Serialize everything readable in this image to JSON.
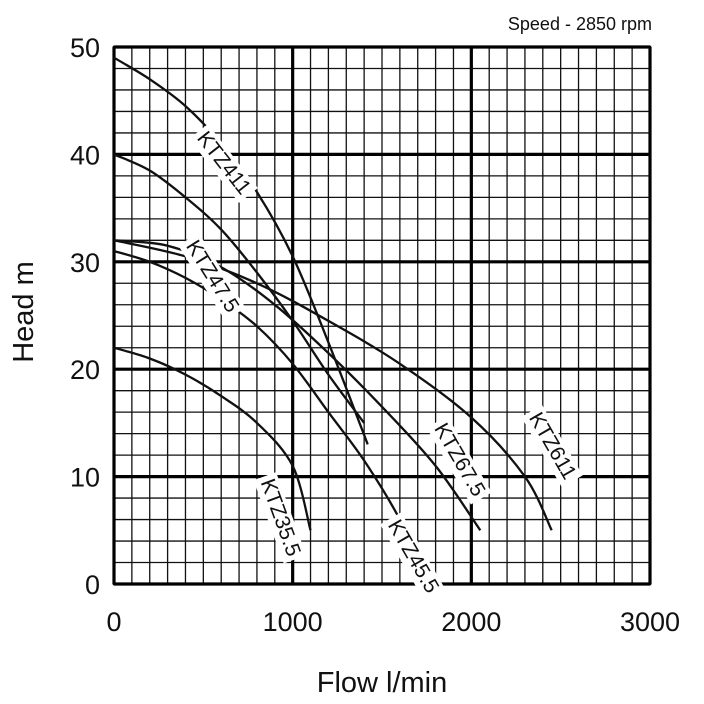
{
  "chart_data": {
    "type": "line",
    "title": "",
    "note": "Speed - 2850 rpm",
    "xlabel": "Flow l/min",
    "ylabel": "Head m",
    "xlim": [
      0,
      3000
    ],
    "ylim": [
      0,
      50
    ],
    "x_ticks": [
      0,
      1000,
      2000,
      3000
    ],
    "y_ticks": [
      0,
      10,
      20,
      30,
      40,
      50
    ],
    "x_minor_step": 100,
    "y_minor_step": 2,
    "grid": true,
    "series": [
      {
        "name": "KTZ411",
        "x": [
          0,
          200,
          400,
          600,
          800,
          1000,
          1200,
          1420
        ],
        "y": [
          49,
          47,
          44.5,
          41,
          36.5,
          30.5,
          22.5,
          13
        ]
      },
      {
        "name": "KTZ47.5",
        "x": [
          0,
          200,
          400,
          600,
          800,
          1000,
          1200,
          1400
        ],
        "y": [
          40,
          38.5,
          36,
          33,
          29,
          24.5,
          19.5,
          15
        ]
      },
      {
        "name": "KTZ35.5",
        "x": [
          0,
          200,
          400,
          600,
          800,
          1000,
          1100
        ],
        "y": [
          22,
          21,
          19.5,
          17.5,
          15,
          11,
          5
        ]
      },
      {
        "name": "KTZ45.5",
        "x": [
          0,
          200,
          400,
          600,
          800,
          1000,
          1200,
          1400,
          1600,
          1700
        ],
        "y": [
          31,
          30,
          28.5,
          26.5,
          24,
          20.5,
          16,
          11.5,
          6,
          2
        ]
      },
      {
        "name": "KTZ67.5",
        "x": [
          0,
          300,
          600,
          900,
          1200,
          1500,
          1800,
          2050
        ],
        "y": [
          32,
          31.5,
          29.5,
          26,
          21.5,
          16.5,
          11,
          5
        ]
      },
      {
        "name": "KTZ611",
        "x": [
          0,
          400,
          800,
          1200,
          1600,
          2000,
          2300,
          2450
        ],
        "y": [
          32,
          30.5,
          28,
          24.5,
          20.5,
          15.5,
          10,
          5
        ]
      }
    ],
    "annotations": [
      {
        "series": "KTZ411",
        "text": "KTZ411",
        "x": 460,
        "y": 41.5,
        "angle": 52
      },
      {
        "series": "KTZ47.5",
        "text": "KTZ47.5",
        "x": 400,
        "y": 31.5,
        "angle": 58
      },
      {
        "series": "KTZ35.5",
        "text": "KTZ35.5",
        "x": 820,
        "y": 9.5,
        "angle": 70
      },
      {
        "series": "KTZ45.5",
        "text": "KTZ45.5",
        "x": 1530,
        "y": 5.5,
        "angle": 60
      },
      {
        "series": "KTZ67.5",
        "text": "KTZ67.5",
        "x": 1790,
        "y": 14.5,
        "angle": 60
      },
      {
        "series": "KTZ611",
        "text": "KTZ611",
        "x": 2320,
        "y": 15.5,
        "angle": 60
      }
    ]
  }
}
